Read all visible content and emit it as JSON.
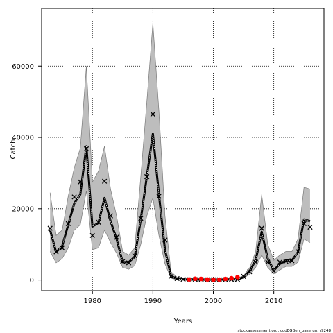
{
  "chart_data": {
    "type": "line",
    "xlabel": "Years",
    "ylabel": "Catch",
    "footer": "stockassessment.org, codEGBen_baserun, r9248",
    "xlim": [
      1971.6,
      2018.3
    ],
    "ylim": [
      -3000,
      76200
    ],
    "x_ticks": [
      "1980",
      "1990",
      "2000",
      "2010"
    ],
    "x_tick_values": [
      1980,
      1990,
      2000,
      2010
    ],
    "y_ticks": [
      "0",
      "20000",
      "40000",
      "60000"
    ],
    "y_tick_values": [
      0,
      20000,
      40000,
      60000
    ],
    "grid": true,
    "grid_style": "dotted",
    "colors": {
      "band": "#bdbdbd",
      "band_edge": "#7a7a7a",
      "line": "#000000",
      "observed_marker": "#000000",
      "red_marker": "#ff0000"
    },
    "series": [
      {
        "name": "",
        "role": "confidence_band",
        "x": [
          1973,
          1974,
          1975,
          1976,
          1977,
          1978,
          1979,
          1980,
          1981,
          1982,
          1983,
          1984,
          1985,
          1986,
          1987,
          1988,
          1989,
          1990,
          1991,
          1992,
          1993,
          1994,
          1995,
          1996,
          1997,
          1998,
          1999,
          2000,
          2001,
          2002,
          2003,
          2004,
          2005,
          2006,
          2007,
          2008,
          2009,
          2010,
          2011,
          2012,
          2013,
          2014,
          2015,
          2016
        ],
        "upper": [
          24500,
          12500,
          14000,
          23500,
          31500,
          37000,
          60000,
          27500,
          30500,
          37500,
          25500,
          18000,
          8000,
          7000,
          9000,
          29000,
          50000,
          72000,
          47500,
          18000,
          2300,
          800,
          600,
          500,
          450,
          400,
          350,
          350,
          350,
          400,
          450,
          550,
          1200,
          3400,
          8000,
          24000,
          10000,
          5500,
          7000,
          8000,
          8000,
          11500,
          26000,
          25500
        ],
        "lower": [
          8000,
          4800,
          6000,
          9000,
          14000,
          15500,
          25000,
          8500,
          9000,
          14000,
          10500,
          7500,
          3500,
          3000,
          4000,
          10000,
          18000,
          23000,
          12500,
          4500,
          500,
          80,
          20,
          20,
          20,
          15,
          15,
          15,
          15,
          15,
          20,
          30,
          500,
          1600,
          3500,
          7000,
          3500,
          1700,
          2800,
          3800,
          3800,
          5000,
          11500,
          10500
        ]
      },
      {
        "name": "",
        "role": "estimate",
        "x": [
          1973,
          1974,
          1975,
          1976,
          1977,
          1978,
          1979,
          1980,
          1981,
          1982,
          1983,
          1984,
          1985,
          1986,
          1987,
          1988,
          1989,
          1990,
          1991,
          1992,
          1993,
          1994,
          1995,
          1996,
          1997,
          1998,
          1999,
          2000,
          2001,
          2002,
          2003,
          2004,
          2005,
          2006,
          2007,
          2008,
          2009,
          2010,
          2011,
          2012,
          2013,
          2014,
          2015,
          2016
        ],
        "y": [
          14000,
          7800,
          9500,
          15500,
          21500,
          24000,
          37500,
          15000,
          16000,
          23000,
          16500,
          11500,
          5000,
          5000,
          6500,
          17000,
          29000,
          41000,
          24000,
          8500,
          1100,
          300,
          150,
          120,
          110,
          100,
          95,
          95,
          95,
          110,
          130,
          180,
          800,
          2500,
          5500,
          13500,
          6000,
          2700,
          4500,
          5500,
          5500,
          7800,
          17000,
          16500
        ]
      },
      {
        "name": "",
        "role": "observed",
        "marker": "x",
        "x": [
          1973,
          1974,
          1975,
          1976,
          1977,
          1978,
          1979,
          1980,
          1981,
          1982,
          1983,
          1984,
          1985,
          1986,
          1987,
          1988,
          1989,
          1990,
          1991,
          1992,
          1993,
          1994,
          1995,
          1996,
          1997,
          1998,
          1999,
          2000,
          2001,
          2002,
          2003,
          2004,
          2005,
          2006,
          2007,
          2008,
          2009,
          2010,
          2011,
          2012,
          2013,
          2014,
          2015,
          2016
        ],
        "y": [
          14500,
          7900,
          9000,
          15800,
          23300,
          27500,
          36800,
          12500,
          16200,
          27700,
          18000,
          12000,
          5200,
          4800,
          6800,
          17300,
          29000,
          46500,
          23500,
          11200,
          1000,
          400,
          200,
          150,
          120,
          100,
          90,
          90,
          90,
          100,
          120,
          150,
          1000,
          2300,
          5000,
          14500,
          5000,
          2500,
          5000,
          5200,
          5400,
          8000,
          15800,
          14800
        ]
      },
      {
        "name": "",
        "role": "red_markers",
        "marker": "circle",
        "x": [
          1996,
          1997,
          1998,
          1999,
          2000,
          2001,
          2002,
          2003,
          2004
        ],
        "y": [
          150,
          350,
          300,
          150,
          100,
          100,
          300,
          500,
          800
        ]
      }
    ]
  }
}
